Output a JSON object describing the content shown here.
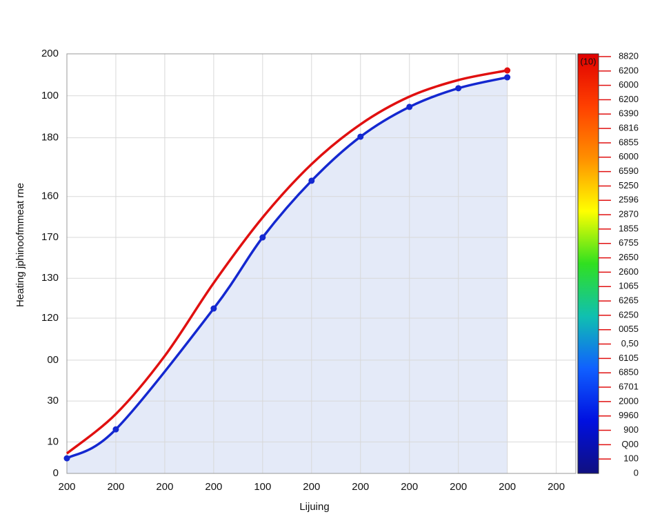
{
  "chart_data": {
    "type": "line",
    "y_label": "Heating jphinoofmmeat rne",
    "x_label": "Lijuing",
    "xlim": [
      0,
      10.4
    ],
    "xticks": [
      {
        "value": 0,
        "label": "200"
      },
      {
        "value": 1,
        "label": "200"
      },
      {
        "value": 2,
        "label": "200"
      },
      {
        "value": 3,
        "label": "200"
      },
      {
        "value": 4,
        "label": "100"
      },
      {
        "value": 5,
        "label": "200"
      },
      {
        "value": 6,
        "label": "200"
      },
      {
        "value": 7,
        "label": "200"
      },
      {
        "value": 8,
        "label": "200"
      },
      {
        "value": 9,
        "label": "200"
      },
      {
        "value": 10,
        "label": "200"
      }
    ],
    "ylim": [
      0,
      200
    ],
    "yticks": [
      200,
      {
        "value": 180,
        "label": "100"
      },
      {
        "value": 160,
        "label": "180"
      },
      {
        "value": 132,
        "label": "160"
      },
      {
        "value": 112.5,
        "label": "170"
      },
      {
        "value": 93,
        "label": "130"
      },
      {
        "value": 74,
        "label": "120"
      },
      {
        "value": 54,
        "label": "00"
      },
      {
        "value": 34.5,
        "label": "30"
      },
      {
        "value": 15,
        "label": "10"
      },
      0
    ],
    "grid": true,
    "series": [
      {
        "color": "#e01010",
        "x": [
          0,
          1,
          2,
          3,
          4,
          5,
          6,
          7,
          8,
          9
        ],
        "values": [
          9.5,
          28.3,
          56,
          90.8,
          122,
          147.4,
          166.4,
          179.6,
          187.5,
          192.1
        ],
        "end_marker": true
      },
      {
        "color": "#1428d0",
        "x": [
          0,
          1,
          3,
          4,
          5,
          6,
          7,
          8,
          9
        ],
        "values": [
          7.2,
          21,
          78.6,
          112.5,
          139.5,
          160.5,
          174.7,
          183.6,
          188.8
        ],
        "markers": true,
        "fill": "#dfe6f7"
      }
    ],
    "colorbar": {
      "title": "(10)",
      "colors": [
        "#e00000",
        "#ff4000",
        "#ff9000",
        "#ffff00",
        "#30e020",
        "#10c0b0",
        "#1060ff",
        "#0010e0",
        "#101080"
      ],
      "labels": [
        "8820",
        "6200",
        "6000",
        "6200",
        "6390",
        "6816",
        "6855",
        "6000",
        "6590",
        "5250",
        "2596",
        "2870",
        "1855",
        "6755",
        "2650",
        "2600",
        "1065",
        "6265",
        "6250",
        "0055",
        "0,50",
        "6105",
        "6850",
        "6701",
        "2000",
        "9960",
        "900",
        "Q00",
        "100",
        "0"
      ]
    }
  }
}
